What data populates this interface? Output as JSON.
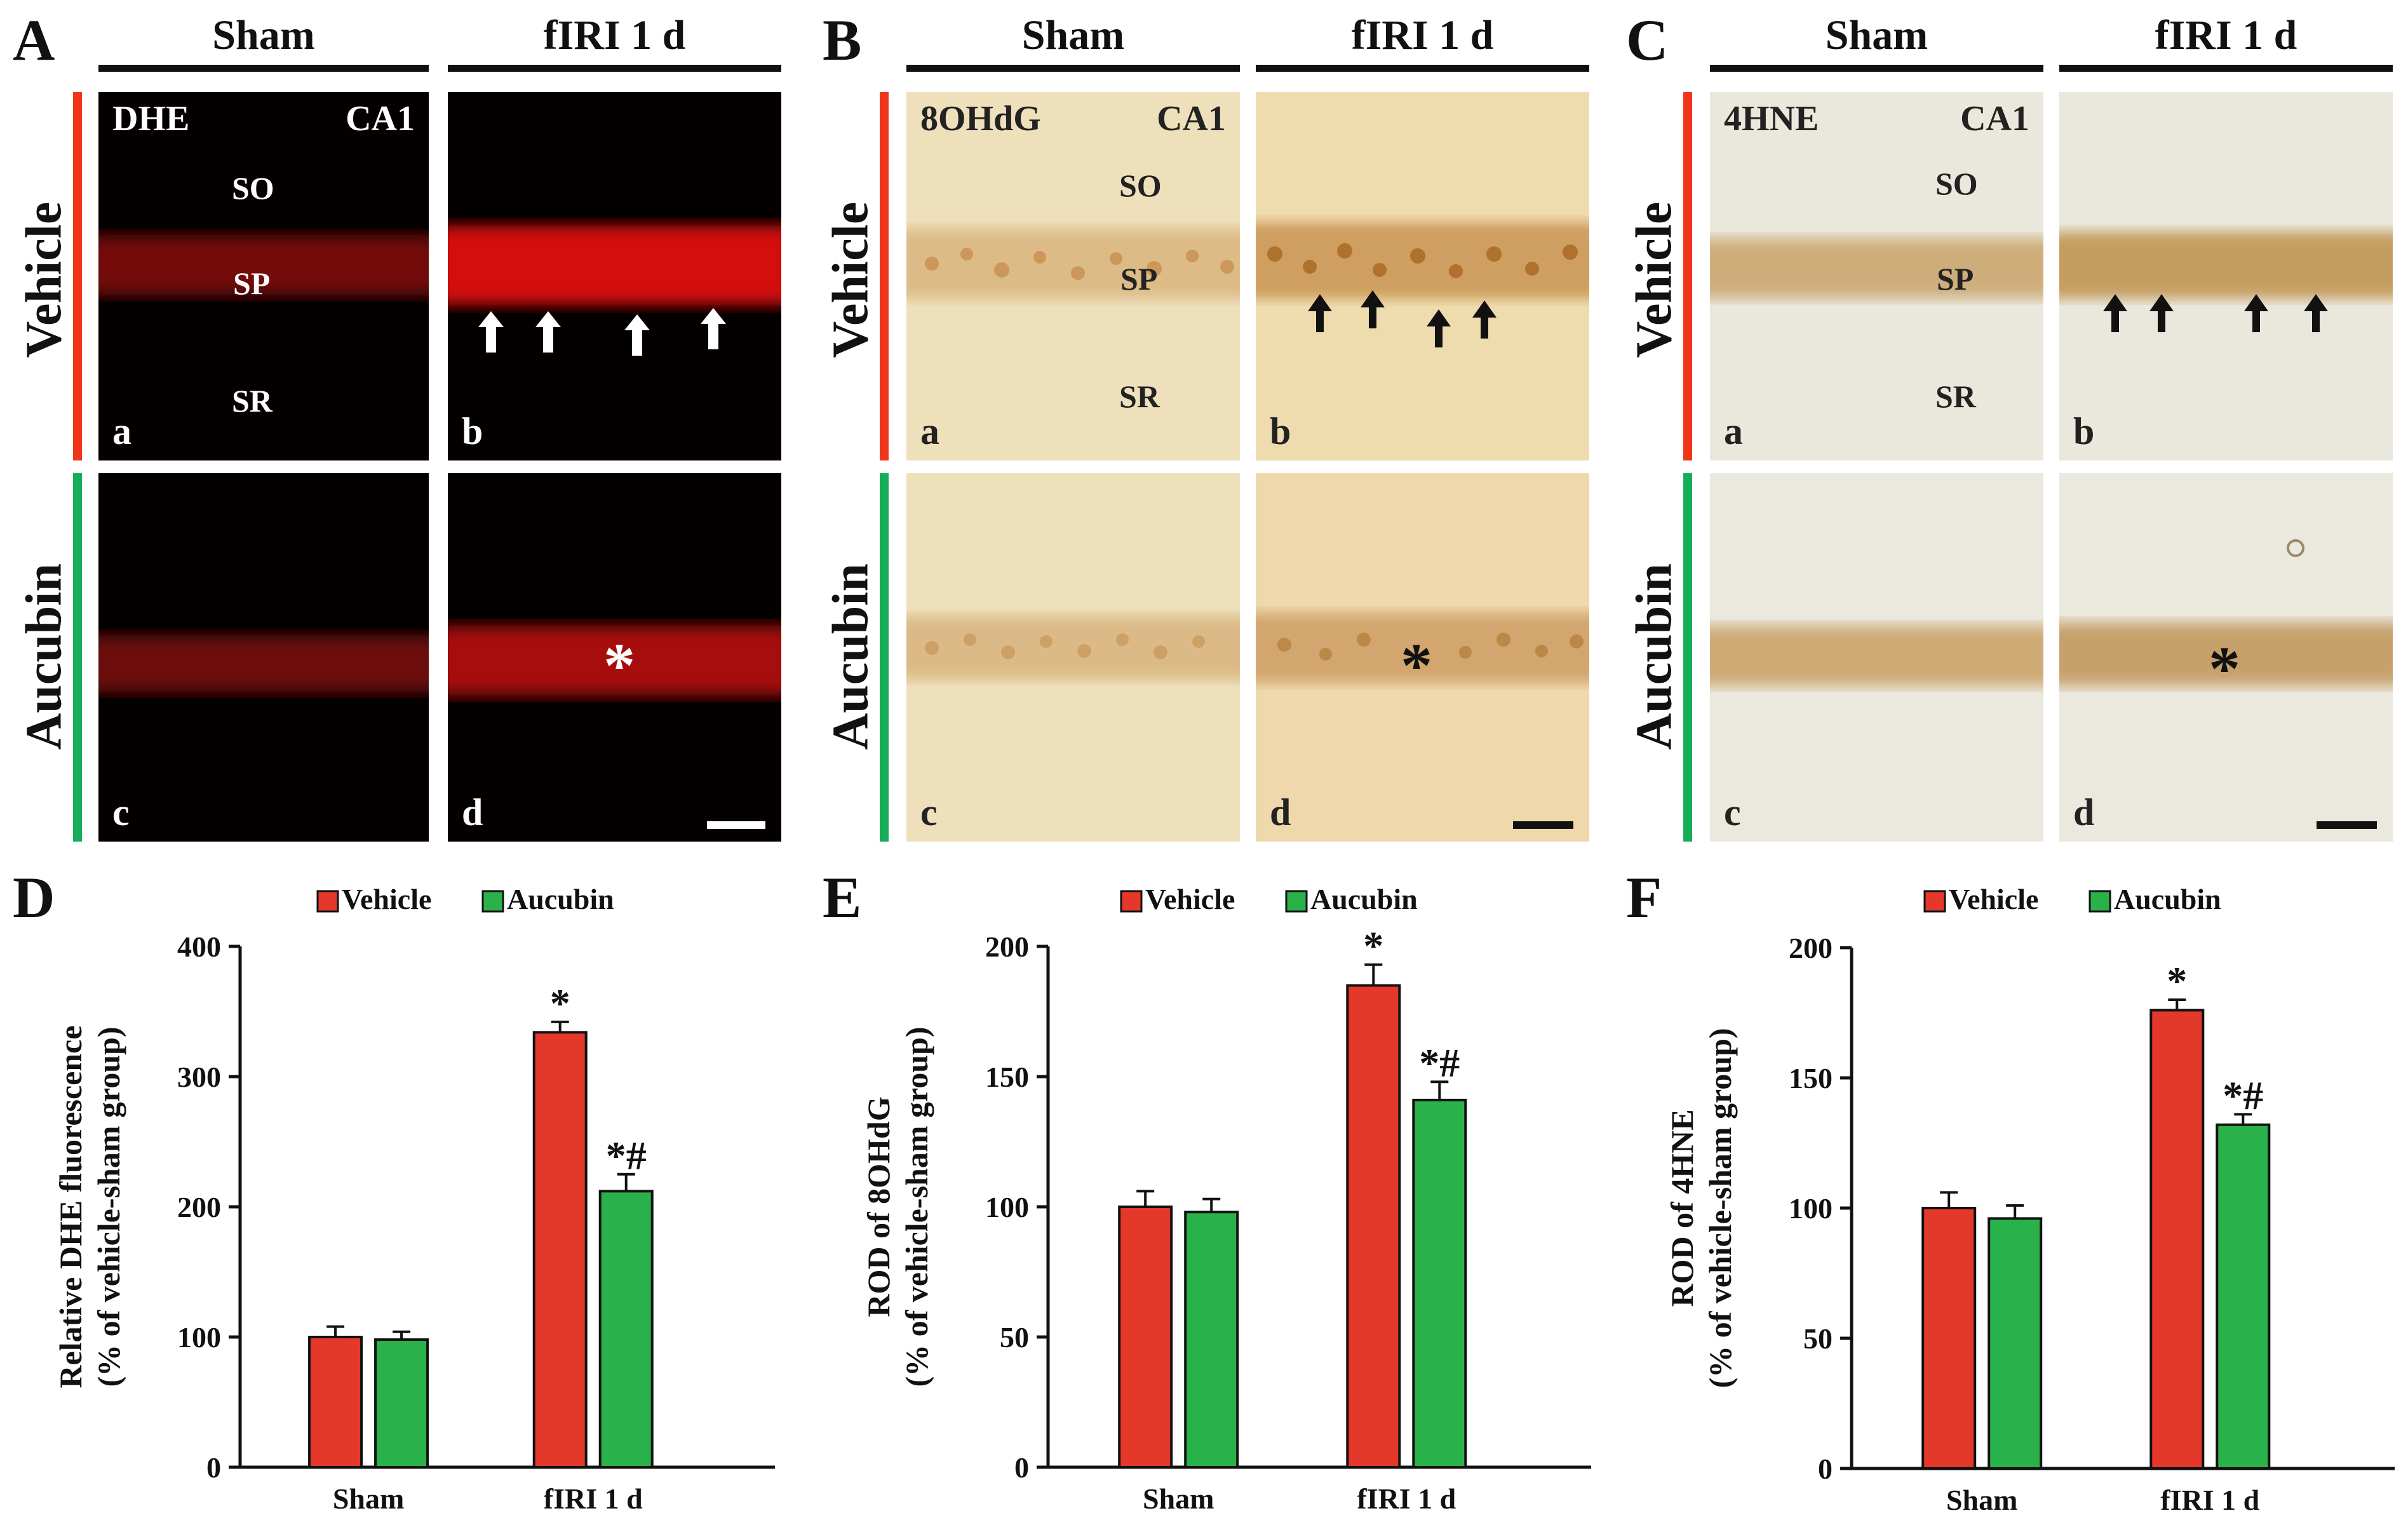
{
  "figure": {
    "col_headers": [
      "Sham",
      "fIRI 1 d"
    ],
    "row_labels": [
      "Vehicle",
      "Aucubin"
    ],
    "colors": {
      "vehicle": "#f0361a",
      "aucubin": "#16ad5a",
      "vehicle_bar": "#e3382a",
      "aucubin_bar": "#2ab24a"
    },
    "panels": [
      {
        "letter": "A",
        "stain": "DHE",
        "region": "CA1",
        "layers": [
          "SO",
          "SP",
          "SR"
        ],
        "sub": [
          "a",
          "b",
          "c",
          "d"
        ],
        "asterisk": "*"
      },
      {
        "letter": "B",
        "stain": "8OHdG",
        "region": "CA1",
        "layers": [
          "SO",
          "SP",
          "SR"
        ],
        "sub": [
          "a",
          "b",
          "c",
          "d"
        ],
        "asterisk": "*"
      },
      {
        "letter": "C",
        "stain": "4HNE",
        "region": "CA1",
        "layers": [
          "SO",
          "SP",
          "SR"
        ],
        "sub": [
          "a",
          "b",
          "c",
          "d"
        ],
        "asterisk": "*"
      }
    ]
  },
  "chart_data": [
    {
      "letter": "D",
      "type": "bar",
      "categories": [
        "Sham",
        "fIRI 1 d"
      ],
      "series": [
        {
          "name": "Vehicle",
          "values": [
            100,
            334
          ],
          "errors": [
            8,
            8
          ],
          "sig": [
            "",
            "*"
          ]
        },
        {
          "name": "Aucubin",
          "values": [
            98,
            212
          ],
          "errors": [
            6,
            13
          ],
          "sig": [
            "",
            "*#"
          ]
        }
      ],
      "ylabel": "Relative DHE fluorescence",
      "ylabel2": "(% of vehicle-sham group)",
      "ylim": [
        0,
        400
      ],
      "yticks": [
        "0",
        "100",
        "200",
        "300",
        "400"
      ],
      "ytick_values": [
        0,
        100,
        200,
        300,
        400
      ]
    },
    {
      "letter": "E",
      "type": "bar",
      "categories": [
        "Sham",
        "fIRI 1 d"
      ],
      "series": [
        {
          "name": "Vehicle",
          "values": [
            100,
            185
          ],
          "errors": [
            6,
            8
          ],
          "sig": [
            "",
            "*"
          ]
        },
        {
          "name": "Aucubin",
          "values": [
            98,
            141
          ],
          "errors": [
            5,
            7
          ],
          "sig": [
            "",
            "*#"
          ]
        }
      ],
      "ylabel": "ROD of 8OHdG",
      "ylabel2": "(% of vehicle-sham group)",
      "ylim": [
        0,
        200
      ],
      "yticks": [
        "0",
        "50",
        "100",
        "150",
        "200"
      ],
      "ytick_values": [
        0,
        50,
        100,
        150,
        200
      ]
    },
    {
      "letter": "F",
      "type": "bar",
      "categories": [
        "Sham",
        "fIRI 1 d"
      ],
      "series": [
        {
          "name": "Vehicle",
          "values": [
            100,
            176
          ],
          "errors": [
            6,
            4
          ],
          "sig": [
            "",
            "*"
          ]
        },
        {
          "name": "Aucubin",
          "values": [
            96,
            132
          ],
          "errors": [
            5,
            4
          ],
          "sig": [
            "",
            "*#"
          ]
        }
      ],
      "ylabel": "ROD of 4HNE",
      "ylabel2": "(% of vehicle-sham group)",
      "ylim": [
        0,
        200
      ],
      "yticks": [
        "0",
        "50",
        "100",
        "150",
        "200"
      ],
      "ytick_values": [
        0,
        50,
        100,
        150,
        200
      ]
    }
  ]
}
